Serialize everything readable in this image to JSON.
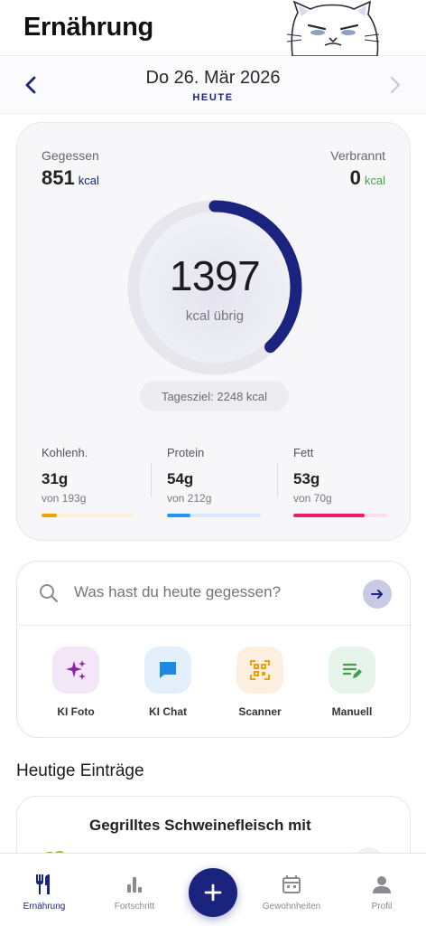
{
  "header": {
    "title": "Ernährung"
  },
  "date_bar": {
    "date": "Do 26. Mär 2026",
    "sub": "HEUTE"
  },
  "summary": {
    "eaten": {
      "label": "Gegessen",
      "value": "851",
      "unit": "kcal"
    },
    "burned": {
      "label": "Verbrannt",
      "value": "0",
      "unit": "kcal"
    },
    "remaining": {
      "value": "1397",
      "caption": "kcal übrig",
      "progress": 0.38
    },
    "goal": "Tagesziel: 2248 kcal",
    "macros": [
      {
        "label": "Kohlenh.",
        "value": "31g",
        "sub": "von 193g",
        "progress": 0.16,
        "color": "#f59e0b",
        "track": "#fbf0d8"
      },
      {
        "label": "Protein",
        "value": "54g",
        "sub": "von 212g",
        "progress": 0.25,
        "color": "#2196f3",
        "track": "#dbe9fb"
      },
      {
        "label": "Fett",
        "value": "53g",
        "sub": "von 70g",
        "progress": 0.76,
        "color": "#e91e63",
        "track": "#fbe0ea"
      }
    ]
  },
  "search": {
    "placeholder": "Was hast du heute gegessen?"
  },
  "actions": [
    {
      "label": "KI Foto",
      "icon": "sparkles-icon"
    },
    {
      "label": "KI Chat",
      "icon": "chat-icon"
    },
    {
      "label": "Scanner",
      "icon": "qr-scanner-icon"
    },
    {
      "label": "Manuell",
      "icon": "edit-list-icon"
    }
  ],
  "entries": {
    "title": "Heutige Einträge",
    "items": [
      {
        "name": "Gegrilltes Schweinefleisch mit"
      }
    ]
  },
  "bottom_nav": {
    "items": [
      {
        "label": "Ernährung",
        "icon": "cutlery-icon",
        "active": true
      },
      {
        "label": "Fortschritt",
        "icon": "bar-chart-icon",
        "active": false
      },
      {
        "label": "Gewohnheiten",
        "icon": "calendar-icon",
        "active": false
      },
      {
        "label": "Profil",
        "icon": "person-icon",
        "active": false
      }
    ],
    "fab": "add-icon"
  },
  "colors": {
    "primary": "#1a237e",
    "burned": "#43a047",
    "ring_track": "#e6e6ec"
  }
}
